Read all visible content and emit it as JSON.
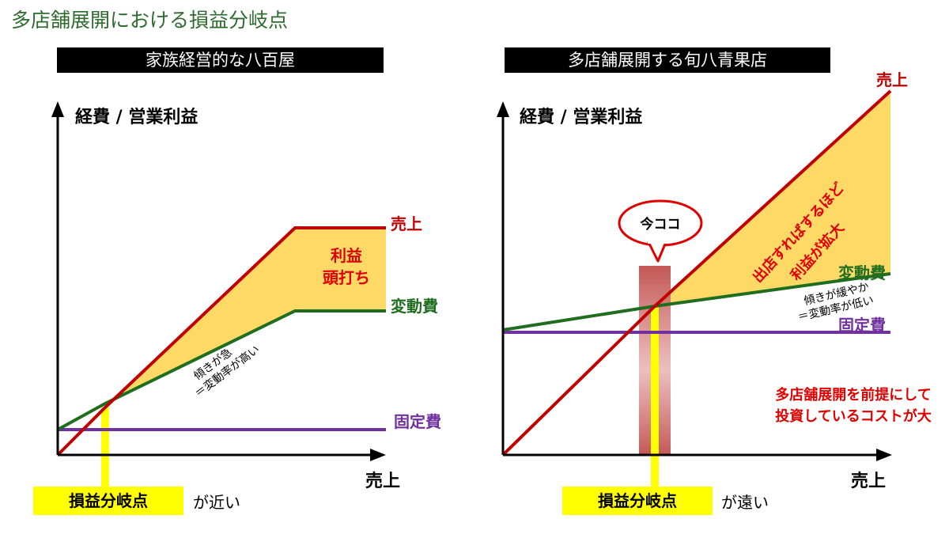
{
  "page_title": "多店舗展開における損益分岐点",
  "colors": {
    "sales": "#c00000",
    "variable": "#1f6e1f",
    "fixed": "#7030a0",
    "profit_fill": "#ffd966",
    "highlight": "#ffff00",
    "header_bg": "#000000",
    "title": "#2e6b2e",
    "red_text": "#e00000",
    "now_bar": "#c0504d"
  },
  "left": {
    "header": "家族経営的な八百屋",
    "bep_label": "損益分岐点",
    "bep_note": "が近い"
  },
  "right": {
    "header": "多店舗展開する旬八青果店",
    "bep_label": "損益分岐点",
    "bep_note": "が遠い"
  },
  "chart_data": [
    {
      "type": "line",
      "title": "家族経営的な八百屋",
      "ylabel": "経費 / 営業利益",
      "xlabel": "売上",
      "x": [
        0,
        60,
        300,
        415
      ],
      "xlim": [
        0,
        415
      ],
      "ylim": [
        0,
        450
      ],
      "series": [
        {
          "name": "売上",
          "color": "#c00000",
          "values": [
            0,
            60,
            287,
            287
          ]
        },
        {
          "name": "変動費",
          "color": "#1f6e1f",
          "values": [
            32,
            65,
            182,
            182
          ]
        },
        {
          "name": "固定費",
          "color": "#7030a0",
          "values": [
            32,
            32,
            32,
            32
          ]
        }
      ],
      "profit_label": [
        "利益",
        "頭打ち"
      ],
      "slope_note": [
        "傾きが急",
        "＝変動率が高い"
      ],
      "bep_x": 60
    },
    {
      "type": "line",
      "title": "多店舗展開する旬八青果店",
      "ylabel": "経費 / 営業利益",
      "xlabel": "売上",
      "x": [
        0,
        192,
        490
      ],
      "xlim": [
        0,
        490
      ],
      "ylim": [
        0,
        450
      ],
      "series": [
        {
          "name": "売上",
          "color": "#c00000",
          "values": [
            0,
            188,
            460
          ]
        },
        {
          "name": "変動費",
          "color": "#1f6e1f",
          "values": [
            158,
            188,
            229
          ]
        },
        {
          "name": "固定費",
          "color": "#7030a0",
          "values": [
            155,
            155,
            155
          ]
        }
      ],
      "profit_label": [
        "出店すればするほど",
        "利益が拡大"
      ],
      "slope_note": [
        "傾きが緩やか",
        "＝変動率が低い"
      ],
      "callout": "今ココ",
      "investment_note": [
        "多店舗展開を前提にして",
        "投資しているコストが大"
      ],
      "bep_x": 192
    }
  ]
}
